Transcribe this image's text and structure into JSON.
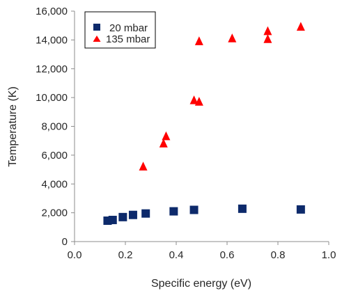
{
  "chart_data": {
    "type": "scatter",
    "title": "",
    "xlabel": "Specific energy (eV)",
    "ylabel": "Temperature (K)",
    "xlim": [
      0.0,
      1.0
    ],
    "ylim": [
      0,
      16000
    ],
    "xticks": [
      0.0,
      0.2,
      0.4,
      0.6,
      0.8,
      1.0
    ],
    "xtick_labels": [
      "0.0",
      "0.2",
      "0.4",
      "0.6",
      "0.8",
      "1.0"
    ],
    "yticks": [
      0,
      2000,
      4000,
      6000,
      8000,
      10000,
      12000,
      14000,
      16000
    ],
    "ytick_labels": [
      "0",
      "2,000",
      "4,000",
      "6,000",
      "8,000",
      "10,000",
      "12,000",
      "14,000",
      "16,000"
    ],
    "grid": false,
    "legend_position": "top-left",
    "series": [
      {
        "name": "20 mbar",
        "marker": "square",
        "color": "#0d2a6b",
        "points": [
          [
            0.13,
            1450
          ],
          [
            0.15,
            1500
          ],
          [
            0.19,
            1700
          ],
          [
            0.23,
            1850
          ],
          [
            0.28,
            1950
          ],
          [
            0.39,
            2100
          ],
          [
            0.47,
            2200
          ],
          [
            0.66,
            2280
          ],
          [
            0.89,
            2230
          ]
        ]
      },
      {
        "name": "135 mbar",
        "marker": "triangle",
        "color": "#ff0000",
        "points": [
          [
            0.27,
            5200
          ],
          [
            0.35,
            6800
          ],
          [
            0.36,
            7300
          ],
          [
            0.47,
            9800
          ],
          [
            0.49,
            9700
          ],
          [
            0.49,
            13900
          ],
          [
            0.62,
            14100
          ],
          [
            0.76,
            14600
          ],
          [
            0.76,
            14050
          ],
          [
            0.89,
            14900
          ]
        ]
      }
    ]
  }
}
